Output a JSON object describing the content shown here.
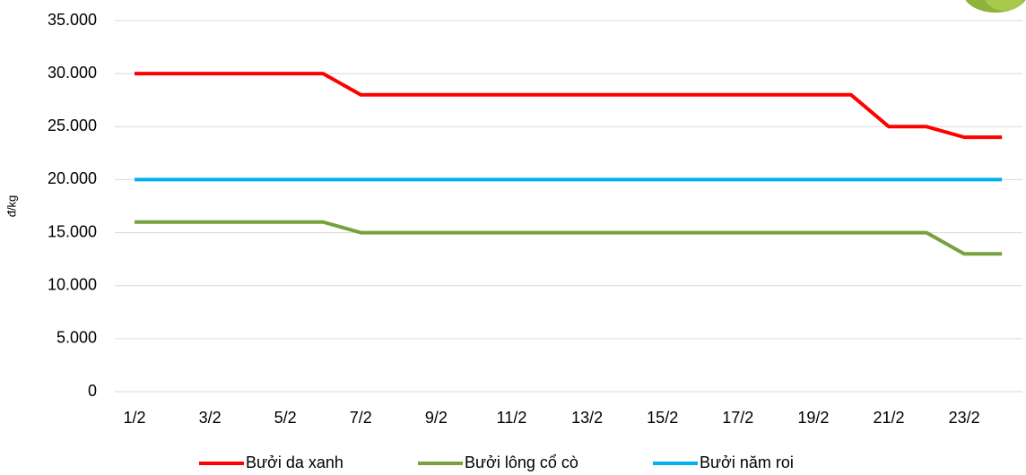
{
  "chart_data": {
    "type": "line",
    "y_label": "đ/kg",
    "categories": [
      "1/2",
      null,
      "3/2",
      null,
      "5/2",
      null,
      "7/2",
      null,
      "9/2",
      null,
      "11/2",
      null,
      "13/2",
      null,
      "15/2",
      null,
      "17/2",
      null,
      "19/2",
      null,
      "21/2",
      null,
      "23/2",
      null
    ],
    "series": [
      {
        "name": "Bưởi da xanh",
        "color": "#ff0000",
        "values": [
          30000,
          30000,
          30000,
          30000,
          30000,
          30000,
          28000,
          28000,
          28000,
          28000,
          28000,
          28000,
          28000,
          28000,
          28000,
          28000,
          28000,
          28000,
          28000,
          28000,
          25000,
          25000,
          24000,
          24000
        ]
      },
      {
        "name": "Bưởi lông cổ cò",
        "color": "#77a13c",
        "values": [
          16000,
          16000,
          16000,
          16000,
          16000,
          16000,
          15000,
          15000,
          15000,
          15000,
          15000,
          15000,
          15000,
          15000,
          15000,
          15000,
          15000,
          15000,
          15000,
          15000,
          15000,
          15000,
          13000,
          13000
        ]
      },
      {
        "name": "Bưởi năm roi",
        "color": "#00b0f0",
        "values": [
          20000,
          20000,
          20000,
          20000,
          20000,
          20000,
          20000,
          20000,
          20000,
          20000,
          20000,
          20000,
          20000,
          20000,
          20000,
          20000,
          20000,
          20000,
          20000,
          20000,
          20000,
          20000,
          20000,
          20000
        ]
      }
    ],
    "ylim": [
      0,
      35000
    ],
    "yticks": [
      0,
      {
        "value": 5000,
        "label": "5.000"
      },
      {
        "value": 10000,
        "label": "10.000"
      },
      {
        "value": 15000,
        "label": "15.000"
      },
      {
        "value": 20000,
        "label": "20.000"
      },
      {
        "value": 25000,
        "label": "25.000"
      },
      {
        "value": 30000,
        "label": "30.000"
      },
      {
        "value": 35000,
        "label": "35.000"
      }
    ],
    "grid": true
  }
}
